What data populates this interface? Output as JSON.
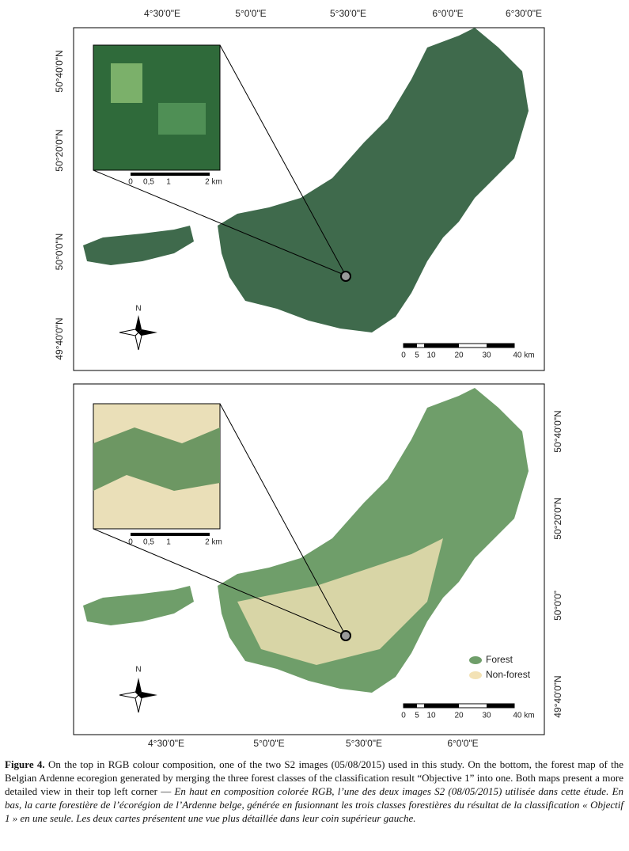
{
  "top_map": {
    "lon_labels": [
      "4°30'0\"E",
      "5°0'0\"E",
      "5°30'0\"E",
      "6°0'0\"E",
      "6°30'0\"E"
    ],
    "lat_labels": [
      "50°40'0\"N",
      "50°20'0\"N",
      "50°0'0\"N",
      "49°40'0\"N"
    ],
    "north": "N",
    "inset_scale": [
      "0",
      "0,5",
      "1",
      "2 km"
    ],
    "scale": [
      "0",
      "5",
      "10",
      "20",
      "30",
      "40 km"
    ]
  },
  "bottom_map": {
    "lon_labels": [
      "4°30'0\"E",
      "5°0'0\"E",
      "5°30'0\"E",
      "6°0'0\"E"
    ],
    "lat_labels": [
      "50°40'0\"N",
      "50°20'0\"N",
      "50°0'0”",
      "49°40'0\"N"
    ],
    "north": "N",
    "inset_scale": [
      "0",
      "0,5",
      "1",
      "2 km"
    ],
    "scale": [
      "0",
      "5",
      "10",
      "20",
      "30",
      "40 km"
    ],
    "legend": [
      "Forest",
      "Non-forest"
    ]
  },
  "caption": {
    "label": "Figure 4.",
    "english": "On the top in RGB colour composition, one of the two S2 images (05/08/2015) used in this study. On the bottom, the forest map of the Belgian Ardenne ecoregion generated by merging the three forest classes of the classification result “Objective 1” into one. Both maps present a more detailed view in their top left corner —",
    "french": "En haut en composition colorée RGB, l’une des deux images S2 (08/05/2015) utilisée dans cette étude. En bas, la carte forestière de l’écorégion de l’Ardenne belge, générée en fusionnant les trois classes forestières du résultat de la classification « Objectif 1 » en une seule. Les deux cartes présentent une vue plus détaillée dans leur coin supérieur gauche."
  }
}
